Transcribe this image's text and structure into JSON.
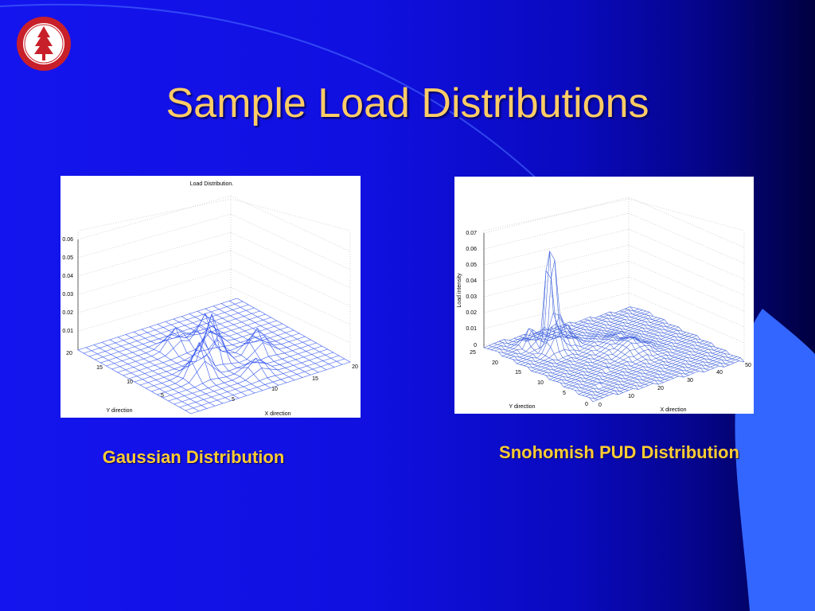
{
  "slide": {
    "title": "Sample Load Distributions",
    "plots": [
      {
        "title": "Load Distribution.",
        "z_ticks": [
          "0.01",
          "0.02",
          "0.03",
          "0.04",
          "0.05",
          "0.06"
        ],
        "y_ticks": [
          "20",
          "15",
          "10",
          "5"
        ],
        "x_ticks": [
          "5",
          "10",
          "15",
          "20"
        ],
        "y_label": "Y direction",
        "x_label": "X direction",
        "caption": "Gaussian Distribution"
      },
      {
        "z_label": "Load intensity",
        "z_ticks": [
          "0",
          "0.01",
          "0.02",
          "0.03",
          "0.04",
          "0.05",
          "0.06",
          "0.07"
        ],
        "y_ticks": [
          "25",
          "20",
          "15",
          "10",
          "5",
          "0"
        ],
        "x_ticks": [
          "0",
          "10",
          "20",
          "30",
          "40",
          "50"
        ],
        "y_label": "Y direction",
        "x_label": "X direction",
        "caption": "Snohomish PUD Distribution"
      }
    ]
  }
}
